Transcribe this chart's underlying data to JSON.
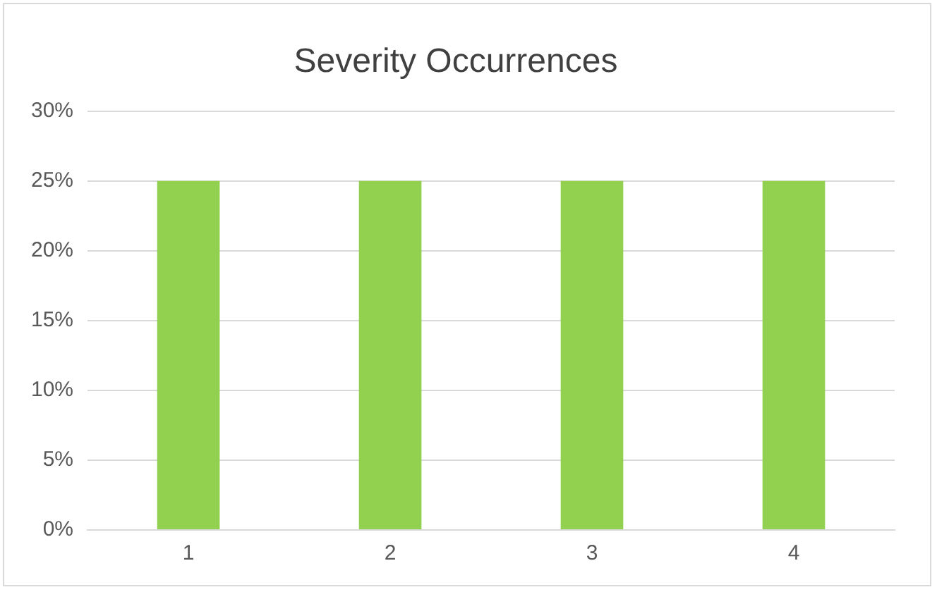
{
  "chart_data": {
    "type": "bar",
    "title": "Severity Occurrences",
    "categories": [
      "1",
      "2",
      "3",
      "4"
    ],
    "values": [
      25,
      25,
      25,
      25
    ],
    "color": "#92d050",
    "ylim": [
      0,
      30
    ],
    "yticks": [
      {
        "value": 0,
        "label": "0%"
      },
      {
        "value": 5,
        "label": "5%"
      },
      {
        "value": 10,
        "label": "10%"
      },
      {
        "value": 15,
        "label": "15%"
      },
      {
        "value": 20,
        "label": "20%"
      },
      {
        "value": 25,
        "label": "25%"
      },
      {
        "value": 30,
        "label": "30%"
      }
    ],
    "grid": "y"
  }
}
